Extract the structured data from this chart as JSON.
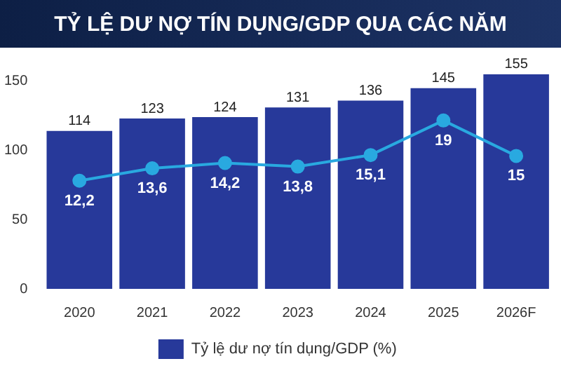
{
  "chart_data": {
    "type": "bar",
    "title": "TỶ LỆ DƯ NỢ TÍN DỤNG/GDP QUA CÁC NĂM",
    "categories": [
      "2020",
      "2021",
      "2022",
      "2023",
      "2024",
      "2025",
      "2026F"
    ],
    "series": [
      {
        "name": "Tỷ lệ dư nợ tín dụng/GDP (%)",
        "color": "#27399a",
        "values": [
          114,
          123,
          124,
          131,
          136,
          145,
          155
        ]
      },
      {
        "type": "line",
        "axis": "y2",
        "color": "#29a9e0",
        "values": [
          12.2,
          13.6,
          14.2,
          13.8,
          15.1,
          19,
          15
        ],
        "value_labels": [
          "12,2",
          "13,6",
          "14,2",
          "13,8",
          "15,1",
          "19",
          "15"
        ]
      }
    ],
    "ylim": [
      0,
      160
    ],
    "yticks": [
      0,
      50,
      100,
      150
    ],
    "data_labels": true,
    "legend": "bottom",
    "marker": "circle"
  }
}
